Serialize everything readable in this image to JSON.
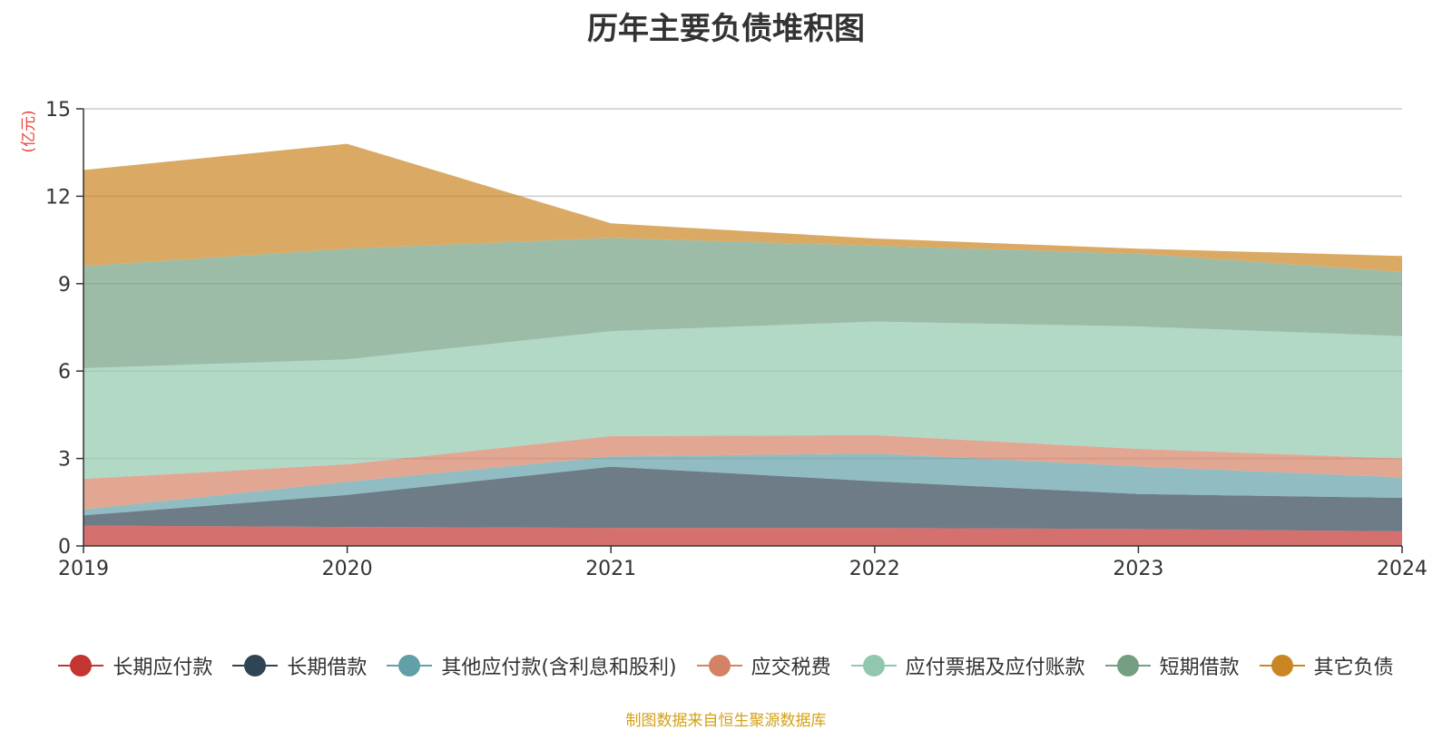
{
  "chart_data": {
    "type": "area",
    "stacked": true,
    "title": "历年主要负债堆积图",
    "unit_label": "(亿元)",
    "x": [
      "2019",
      "2020",
      "2021",
      "2022",
      "2023",
      "2024"
    ],
    "ylim": [
      0,
      15
    ],
    "yticks": [
      "0",
      "3",
      "6",
      "9",
      "12",
      "15"
    ],
    "grid": true,
    "legend_position": "bottom",
    "series": [
      {
        "name": "长期应付款",
        "color": "#c23531",
        "values": [
          0.7,
          0.65,
          0.62,
          0.62,
          0.58,
          0.5
        ]
      },
      {
        "name": "长期借款",
        "color": "#2f4554",
        "values": [
          0.35,
          1.1,
          2.1,
          1.6,
          1.2,
          1.15
        ]
      },
      {
        "name": "其他应付款(含利息和股利)",
        "color": "#61a0a8",
        "values": [
          0.2,
          0.45,
          0.35,
          0.95,
          0.95,
          0.7
        ]
      },
      {
        "name": "应交税费",
        "color": "#d48265",
        "values": [
          1.05,
          0.6,
          0.7,
          0.63,
          0.6,
          0.65
        ]
      },
      {
        "name": "应付票据及应付账款",
        "color": "#91c7ae",
        "values": [
          3.8,
          3.6,
          3.6,
          3.9,
          4.2,
          4.2
        ]
      },
      {
        "name": "短期借款",
        "color": "#749f83",
        "values": [
          3.5,
          3.8,
          3.2,
          2.6,
          2.5,
          2.2
        ]
      },
      {
        "name": "其它负债",
        "color": "#ca8622",
        "values": [
          3.3,
          3.6,
          0.5,
          0.25,
          0.17,
          0.55
        ]
      }
    ]
  },
  "source_note": "制图数据来自恒生聚源数据库"
}
